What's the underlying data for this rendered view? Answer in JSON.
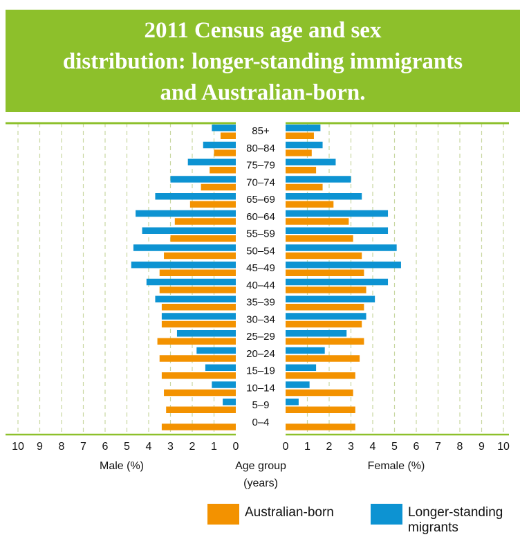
{
  "title": {
    "line1": "2011 Census age and sex",
    "line2": "distribution: longer-standing immigrants",
    "line3": "and Australian-born."
  },
  "colors": {
    "banner": "#8dc02b",
    "australian_born": "#f39200",
    "longer_standing": "#0d93d2",
    "grid": "#c8d7a0",
    "axis_line": "#8dc02b"
  },
  "axis": {
    "male_label": "Male (%)",
    "female_label": "Female (%)",
    "center_label_1": "Age group",
    "center_label_2": "(years)"
  },
  "legend": {
    "australian_born": "Australian-born",
    "longer_standing_1": "Longer-standing",
    "longer_standing_2": "migrants"
  },
  "chart_data": {
    "type": "bar",
    "orientation": "horizontal",
    "layout": "population-pyramid",
    "xlim": [
      0,
      10
    ],
    "ticks": [
      0,
      1,
      2,
      3,
      4,
      5,
      6,
      7,
      8,
      9,
      10
    ],
    "grid": true,
    "categories": [
      "85+",
      "80–84",
      "75–79",
      "70–74",
      "65–69",
      "60–64",
      "55–59",
      "50–54",
      "45–49",
      "40–44",
      "35–39",
      "30–34",
      "25–29",
      "20–24",
      "15–19",
      "10–14",
      "5–9",
      "0–4"
    ],
    "series": [
      {
        "name": "Australian-born",
        "side": "male",
        "values": [
          0.7,
          1.0,
          1.2,
          1.6,
          2.1,
          2.8,
          3.0,
          3.3,
          3.5,
          3.5,
          3.4,
          3.4,
          3.6,
          3.5,
          3.4,
          3.3,
          3.2,
          3.4
        ]
      },
      {
        "name": "Longer-standing migrants",
        "side": "male",
        "values": [
          1.1,
          1.5,
          2.2,
          3.0,
          3.7,
          4.6,
          4.3,
          4.7,
          4.8,
          4.1,
          3.7,
          3.4,
          2.7,
          1.8,
          1.4,
          1.1,
          0.6,
          0.0
        ]
      },
      {
        "name": "Australian-born",
        "side": "female",
        "values": [
          1.3,
          1.2,
          1.4,
          1.7,
          2.2,
          2.9,
          3.1,
          3.5,
          3.6,
          3.7,
          3.6,
          3.5,
          3.6,
          3.4,
          3.2,
          3.1,
          3.2,
          3.2
        ]
      },
      {
        "name": "Longer-standing migrants",
        "side": "female",
        "values": [
          1.6,
          1.7,
          2.3,
          3.0,
          3.5,
          4.7,
          4.7,
          5.1,
          5.3,
          4.7,
          4.1,
          3.7,
          2.8,
          1.8,
          1.4,
          1.1,
          0.6,
          0.0
        ]
      }
    ]
  }
}
